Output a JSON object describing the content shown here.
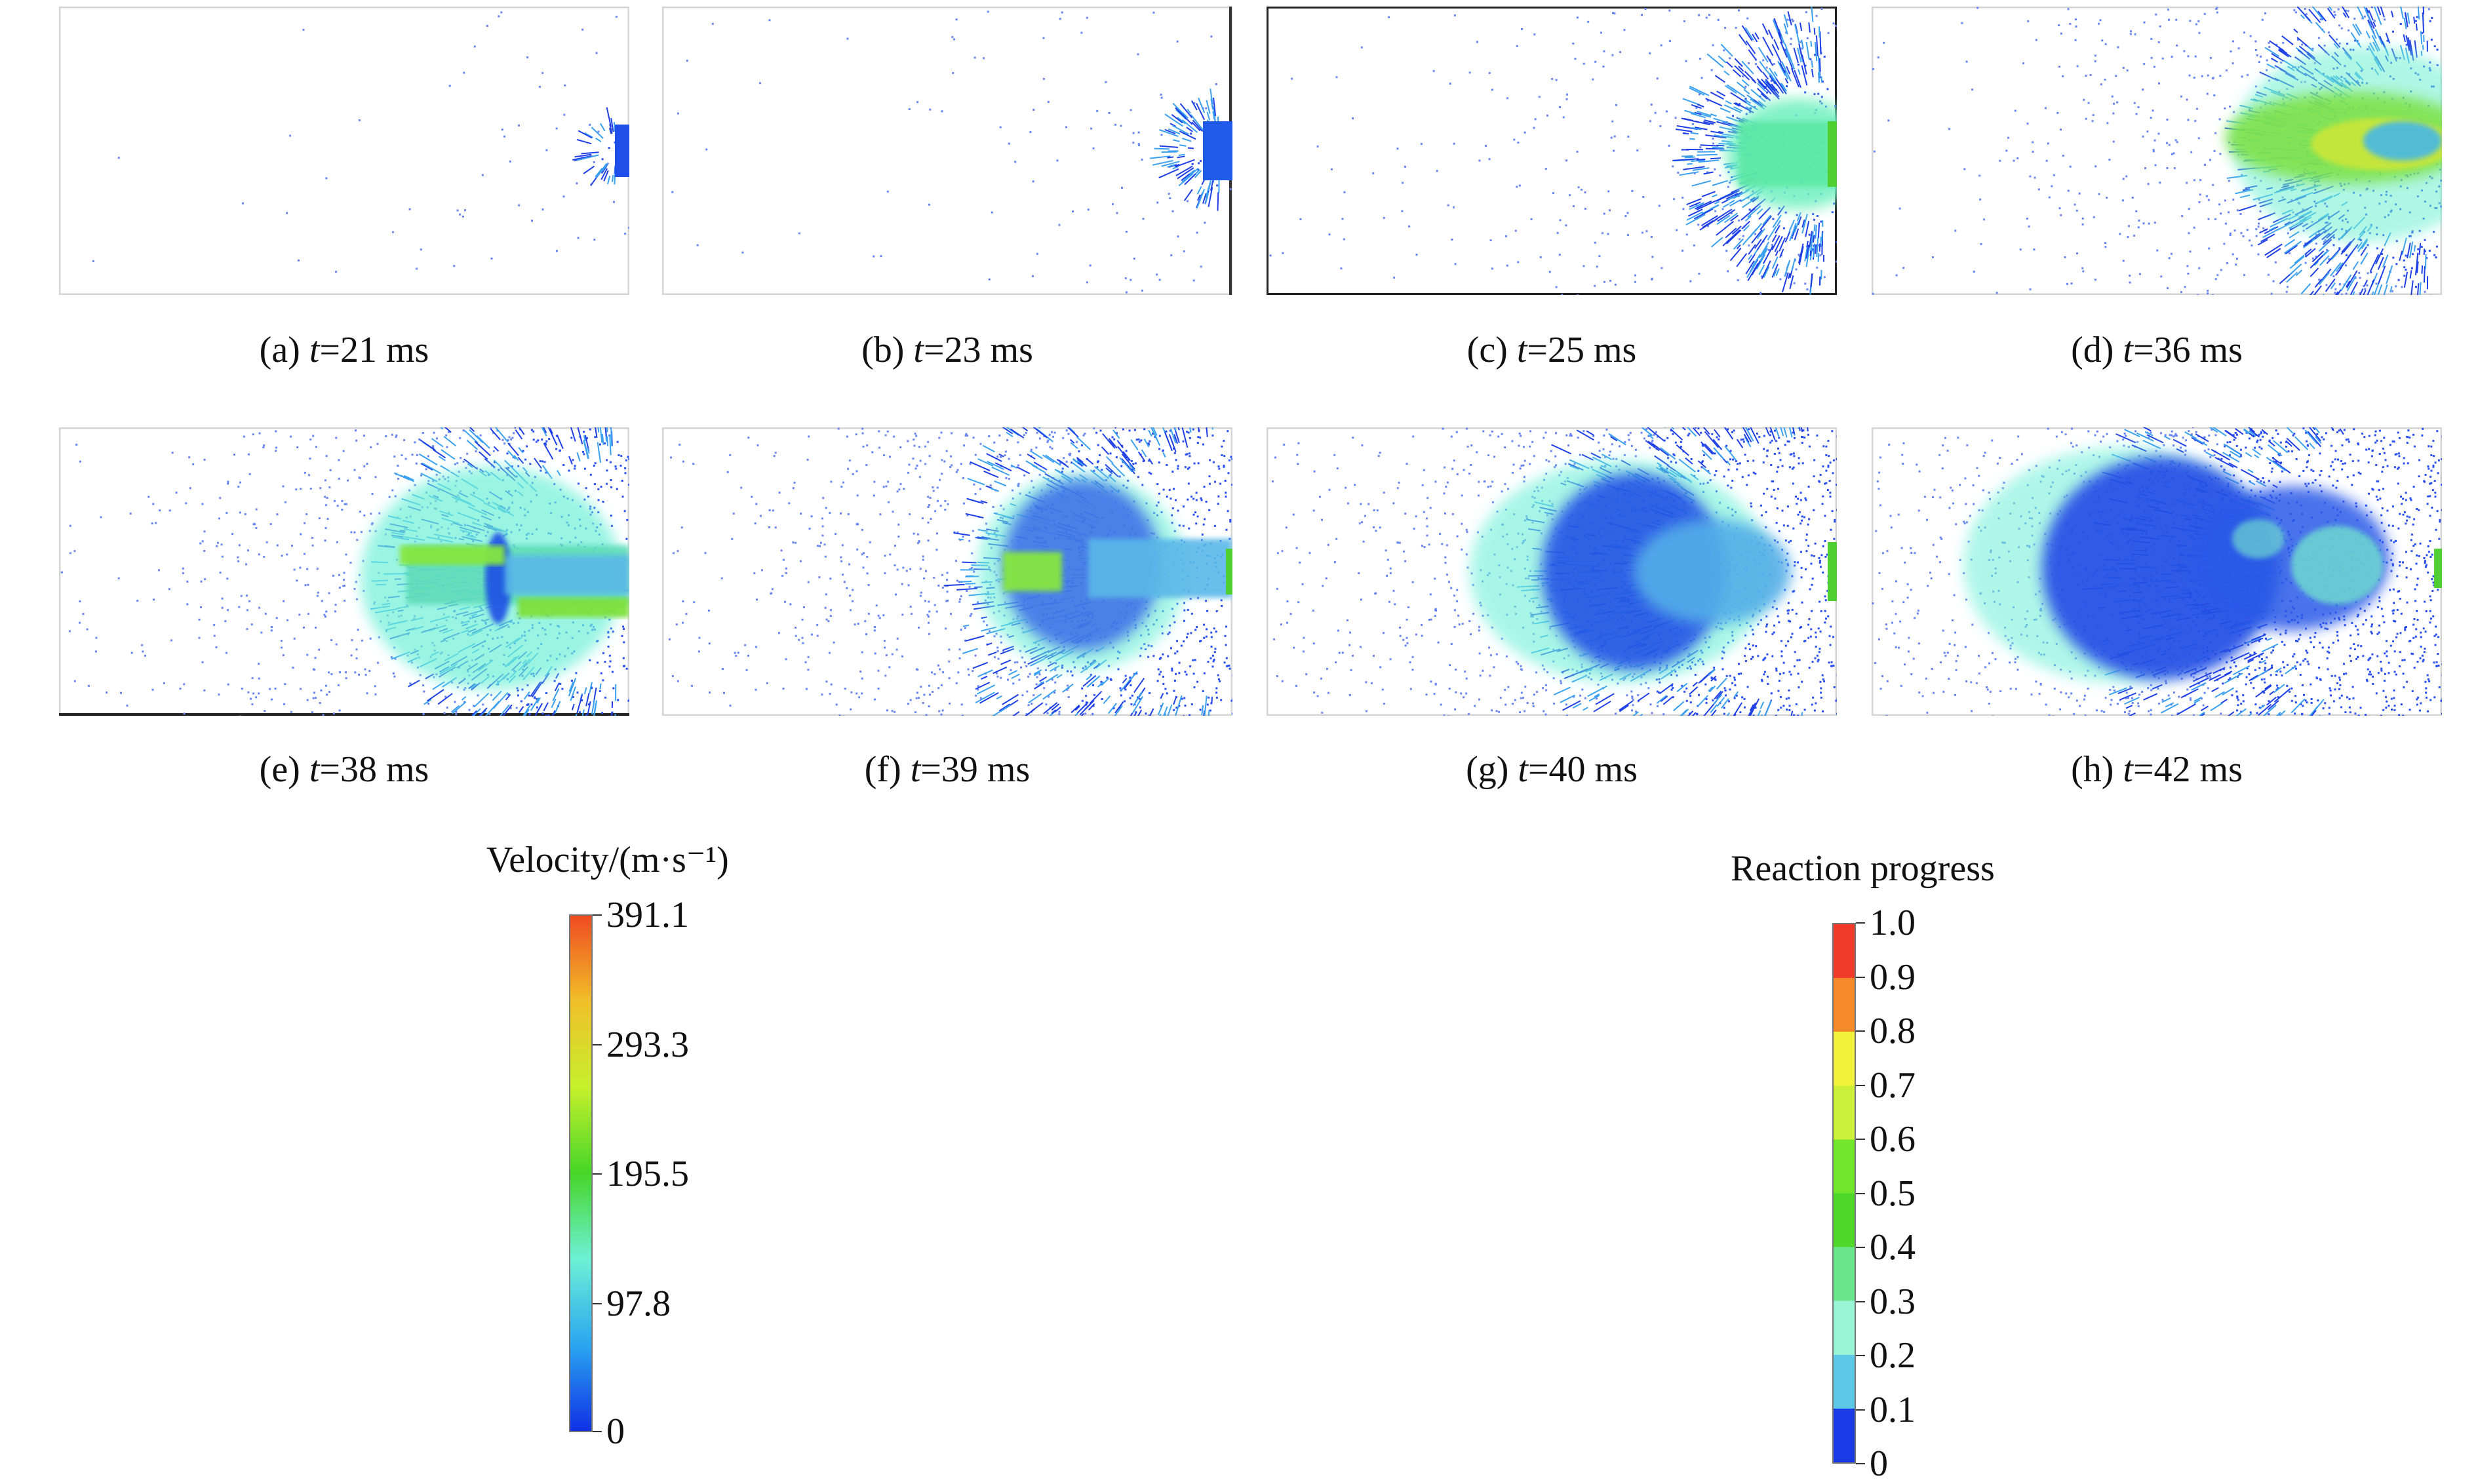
{
  "panels": [
    {
      "label": "(a) ",
      "t": "t",
      "rest": "=21 ms",
      "stage": 0
    },
    {
      "label": "(b) ",
      "t": "t",
      "rest": "=23 ms",
      "stage": 1
    },
    {
      "label": "(c) ",
      "t": "t",
      "rest": "=25 ms",
      "stage": 2
    },
    {
      "label": "(d) ",
      "t": "t",
      "rest": "=36 ms",
      "stage": 3
    },
    {
      "label": "(e) ",
      "t": "t",
      "rest": "=38 ms",
      "stage": 4
    },
    {
      "label": "(f) ",
      "t": "t",
      "rest": "=39 ms",
      "stage": 5
    },
    {
      "label": "(g) ",
      "t": "t",
      "rest": "=40 ms",
      "stage": 6
    },
    {
      "label": "(h) ",
      "t": "t",
      "rest": "=42 ms",
      "stage": 7
    }
  ],
  "velocity_bar": {
    "title": "Velocity/(m·s⁻¹)",
    "ticks": [
      "391.1",
      "293.3",
      "195.5",
      "97.8",
      "0"
    ],
    "colors": [
      "#1030e6",
      "#2aa6f0",
      "#6ef0d6",
      "#46d628",
      "#c6f02c",
      "#f0c028",
      "#f04a22"
    ]
  },
  "reaction_bar": {
    "title": "Reaction progress",
    "ticks": [
      "1.0",
      "0.9",
      "0.8",
      "0.7",
      "0.6",
      "0.5",
      "0.4",
      "0.3",
      "0.2",
      "0.1",
      "0"
    ],
    "colors": [
      "#f03a2a",
      "#f58a2a",
      "#f2f23a",
      "#ccf03a",
      "#72e62a",
      "#4fd82a",
      "#6ae68a",
      "#9af4d6",
      "#5cc8e6",
      "#1a3ae6"
    ]
  }
}
